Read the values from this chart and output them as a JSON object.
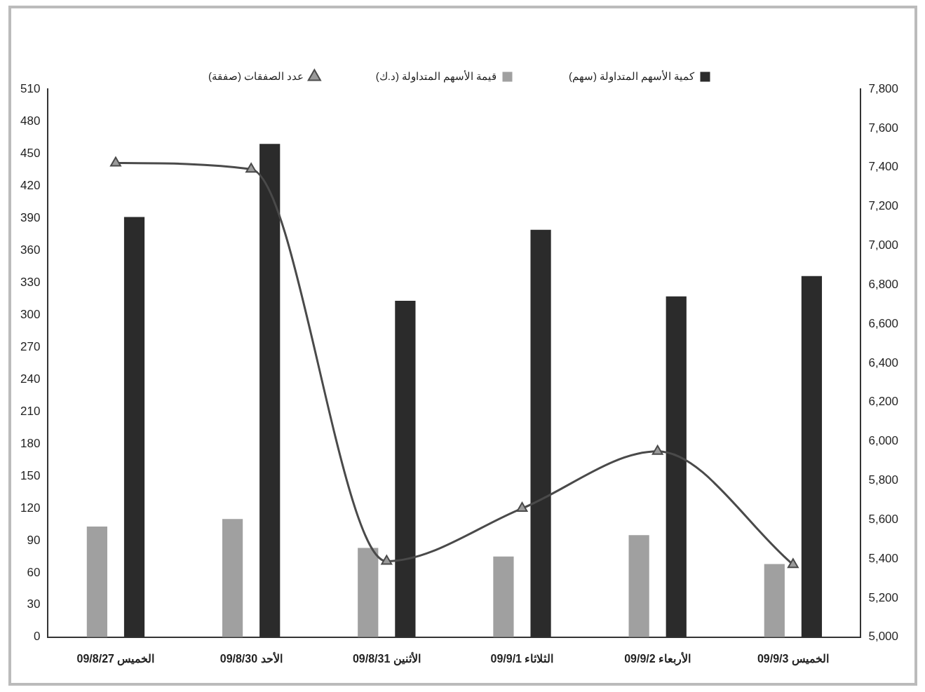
{
  "chart_data": {
    "type": "bar",
    "categories": [
      "09/8/27 الخميس",
      "09/8/30 الأحد",
      "09/8/31 الأثنين",
      "09/9/1 الثلاثاء",
      "09/9/2 الأربعاء",
      "09/9/3 الخميس"
    ],
    "series": [
      {
        "name": "قيمة الأسهم المتداولة (د.ك)",
        "color": "#a0a0a0",
        "values": [
          103,
          110,
          83,
          75,
          95,
          68
        ]
      },
      {
        "name": "كمية الأسهم المتداولة (سهم)",
        "color": "#2b2b2b",
        "values": [
          391,
          459,
          313,
          379,
          317,
          336
        ]
      },
      {
        "name": "عدد الصفقات (صفقة)",
        "type": "line",
        "axis": "y2",
        "color": "#4a4a4a",
        "marker": "triangle",
        "values": [
          7422,
          7391,
          5388,
          5658,
          5949,
          5371
        ]
      }
    ],
    "ylim": [
      0,
      510
    ],
    "yticks": [
      0,
      30,
      60,
      90,
      120,
      150,
      180,
      210,
      240,
      270,
      300,
      330,
      360,
      390,
      420,
      450,
      480,
      510
    ],
    "y2lim": [
      5000,
      7800
    ],
    "y2ticks": [
      {
        "value": 5000,
        "label": "5,000"
      },
      {
        "value": 5200,
        "label": "5,200"
      },
      {
        "value": 5400,
        "label": "5,400"
      },
      {
        "value": 5600,
        "label": "5,600"
      },
      {
        "value": 5800,
        "label": "5,800"
      },
      {
        "value": 6000,
        "label": "6,000"
      },
      {
        "value": 6200,
        "label": "6,200"
      },
      {
        "value": 6400,
        "label": "6,400"
      },
      {
        "value": 6600,
        "label": "6,600"
      },
      {
        "value": 6800,
        "label": "6,800"
      },
      {
        "value": 7000,
        "label": "7,000"
      },
      {
        "value": 7200,
        "label": "7,200"
      },
      {
        "value": 7400,
        "label": "7,400"
      },
      {
        "value": 7600,
        "label": "7,600"
      },
      {
        "value": 7800,
        "label": "7,800"
      }
    ],
    "grid": false,
    "legend": "top"
  }
}
